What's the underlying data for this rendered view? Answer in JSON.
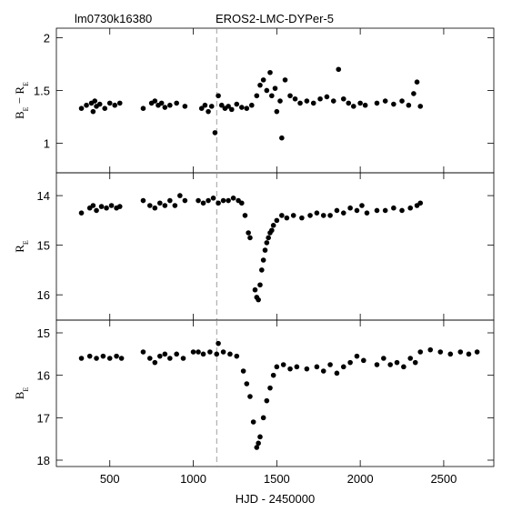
{
  "chart_data": [
    {
      "type": "scatter",
      "title_left": "lm0730k16380",
      "title": "EROS2-LMC-DYPer-5",
      "ylabel": [
        {
          "text": "B"
        },
        {
          "text": "E",
          "sub": true
        },
        {
          "text": " − R"
        },
        {
          "text": "E",
          "sub": true
        }
      ],
      "color": "#000000",
      "vline": 1140,
      "xlim": [
        180,
        2800
      ],
      "ylim": [
        0.72,
        2.09
      ],
      "yticks": [
        1,
        1.5,
        2
      ],
      "x": [
        330,
        360,
        390,
        400,
        410,
        420,
        440,
        470,
        500,
        530,
        560,
        700,
        750,
        770,
        790,
        810,
        830,
        860,
        900,
        950,
        1050,
        1070,
        1090,
        1110,
        1130,
        1150,
        1170,
        1190,
        1210,
        1230,
        1260,
        1290,
        1320,
        1350,
        1380,
        1400,
        1420,
        1440,
        1460,
        1470,
        1490,
        1500,
        1520,
        1530,
        1550,
        1580,
        1610,
        1640,
        1680,
        1720,
        1760,
        1800,
        1840,
        1870,
        1900,
        1930,
        1960,
        2000,
        2030,
        2100,
        2150,
        2200,
        2250,
        2290,
        2320,
        2340,
        2360
      ],
      "values": [
        1.33,
        1.36,
        1.38,
        1.3,
        1.4,
        1.35,
        1.37,
        1.33,
        1.38,
        1.36,
        1.38,
        1.33,
        1.38,
        1.4,
        1.36,
        1.38,
        1.34,
        1.36,
        1.38,
        1.35,
        1.33,
        1.36,
        1.3,
        1.35,
        1.1,
        1.45,
        1.36,
        1.33,
        1.35,
        1.32,
        1.37,
        1.34,
        1.33,
        1.36,
        1.45,
        1.55,
        1.6,
        1.5,
        1.67,
        1.45,
        1.52,
        1.3,
        1.4,
        1.05,
        1.6,
        1.45,
        1.42,
        1.38,
        1.4,
        1.38,
        1.42,
        1.44,
        1.4,
        1.7,
        1.42,
        1.38,
        1.35,
        1.38,
        1.36,
        1.38,
        1.4,
        1.37,
        1.4,
        1.36,
        1.47,
        1.58,
        1.35
      ]
    },
    {
      "type": "scatter",
      "ylabel": [
        {
          "text": "R"
        },
        {
          "text": "E",
          "sub": true
        }
      ],
      "color": "#000000",
      "vline": 1140,
      "xlim": [
        180,
        2800
      ],
      "ylim": [
        16.51,
        13.54
      ],
      "yticks": [
        14,
        15,
        16
      ],
      "x": [
        330,
        380,
        400,
        420,
        450,
        480,
        510,
        540,
        560,
        700,
        740,
        770,
        800,
        830,
        860,
        890,
        920,
        950,
        1030,
        1060,
        1090,
        1120,
        1150,
        1180,
        1210,
        1240,
        1270,
        1290,
        1310,
        1330,
        1340,
        1370,
        1380,
        1390,
        1400,
        1410,
        1420,
        1430,
        1440,
        1450,
        1460,
        1470,
        1480,
        1500,
        1530,
        1560,
        1600,
        1650,
        1700,
        1740,
        1780,
        1820,
        1860,
        1900,
        1940,
        1980,
        2010,
        2040,
        2100,
        2150,
        2200,
        2250,
        2300,
        2340,
        2360
      ],
      "values": [
        14.35,
        14.25,
        14.2,
        14.3,
        14.22,
        14.25,
        14.2,
        14.25,
        14.22,
        14.1,
        14.2,
        14.25,
        14.15,
        14.2,
        14.1,
        14.2,
        14.0,
        14.1,
        14.1,
        14.15,
        14.1,
        14.05,
        14.15,
        14.1,
        14.1,
        14.05,
        14.1,
        14.15,
        14.4,
        14.75,
        14.85,
        15.9,
        16.05,
        16.1,
        15.8,
        15.5,
        15.3,
        15.1,
        14.95,
        14.85,
        14.75,
        14.7,
        14.6,
        14.5,
        14.4,
        14.45,
        14.4,
        14.45,
        14.4,
        14.35,
        14.4,
        14.4,
        14.3,
        14.35,
        14.25,
        14.3,
        14.2,
        14.35,
        14.3,
        14.3,
        14.25,
        14.3,
        14.25,
        14.2,
        14.15
      ]
    },
    {
      "type": "scatter",
      "xlabel": "HJD - 2450000",
      "ylabel": [
        {
          "text": "B"
        },
        {
          "text": "E",
          "sub": true
        }
      ],
      "color": "#000000",
      "vline": 1140,
      "xlim": [
        180,
        2800
      ],
      "xticks": [
        500,
        1000,
        1500,
        2000,
        2500
      ],
      "ylim": [
        18.15,
        14.7
      ],
      "yticks": [
        15,
        16,
        17,
        18
      ],
      "x": [
        330,
        380,
        420,
        460,
        500,
        540,
        570,
        700,
        740,
        770,
        800,
        830,
        860,
        900,
        940,
        1000,
        1030,
        1060,
        1100,
        1140,
        1150,
        1180,
        1220,
        1260,
        1300,
        1320,
        1340,
        1360,
        1380,
        1390,
        1400,
        1420,
        1440,
        1460,
        1480,
        1500,
        1540,
        1580,
        1620,
        1680,
        1740,
        1780,
        1820,
        1860,
        1900,
        1940,
        1980,
        2020,
        2100,
        2140,
        2180,
        2220,
        2260,
        2300,
        2330,
        2360,
        2420,
        2480,
        2540,
        2600,
        2650,
        2700
      ],
      "values": [
        15.6,
        15.55,
        15.6,
        15.55,
        15.6,
        15.55,
        15.6,
        15.45,
        15.6,
        15.7,
        15.55,
        15.5,
        15.6,
        15.5,
        15.6,
        15.45,
        15.45,
        15.5,
        15.45,
        15.5,
        15.25,
        15.45,
        15.5,
        15.55,
        15.9,
        16.2,
        16.5,
        17.1,
        17.7,
        17.6,
        17.45,
        17.0,
        16.6,
        16.3,
        16.0,
        15.8,
        15.75,
        15.85,
        15.8,
        15.85,
        15.8,
        15.9,
        15.75,
        15.95,
        15.8,
        15.7,
        15.55,
        15.65,
        15.75,
        15.6,
        15.75,
        15.7,
        15.8,
        15.6,
        15.7,
        15.45,
        15.4,
        15.45,
        15.5,
        15.45,
        15.5,
        15.45
      ]
    }
  ]
}
